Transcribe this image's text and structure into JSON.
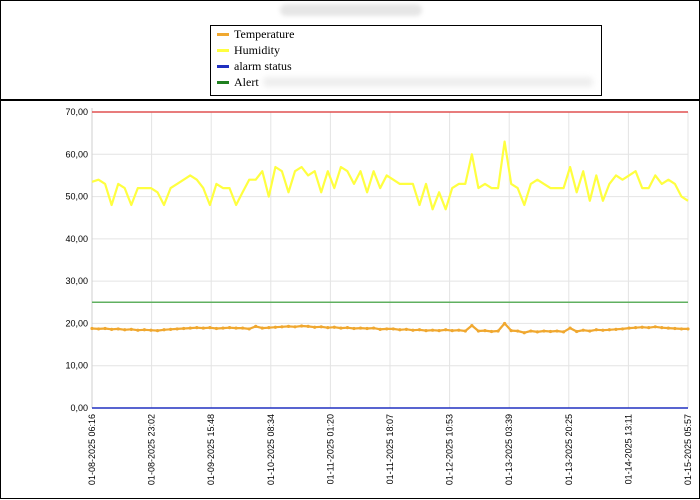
{
  "legend": {
    "items": [
      {
        "label": "Temperature",
        "color": "#f0a830"
      },
      {
        "label": "Humidity",
        "color": "#ffff40"
      },
      {
        "label": "alarm status",
        "color": "#2030c0"
      },
      {
        "label": "Alert",
        "color": "#208020"
      }
    ]
  },
  "chart_data": {
    "type": "line",
    "ylim": [
      0,
      70
    ],
    "y_ticks": [
      "0,00",
      "10,00",
      "20,00",
      "30,00",
      "40,00",
      "50,00",
      "60,00",
      "70,00"
    ],
    "x_ticks": [
      "01-08-2025 06:16",
      "01-08-2025 23:02",
      "01-09-2025 15:48",
      "01-10-2025 08:34",
      "01-11-2025 01:20",
      "01-11-2025 18:07",
      "01-12-2025 10:53",
      "01-13-2025 03:39",
      "01-13-2025 20:25",
      "01-14-2025 13:11",
      "01-15-2025 05:57"
    ],
    "grid": true,
    "thresholds": [
      {
        "value": 70,
        "color": "#e05050"
      },
      {
        "value": 25,
        "color": "#60b060"
      }
    ],
    "series": [
      {
        "name": "Humidity",
        "color": "#ffff40",
        "values": [
          53.5,
          54,
          53,
          48,
          53,
          52,
          48,
          52,
          52,
          52,
          51,
          48,
          52,
          53,
          54,
          55,
          54,
          52,
          48,
          53,
          52,
          52,
          48,
          51,
          54,
          54,
          56,
          50,
          57,
          56,
          51,
          56,
          57,
          55,
          56,
          51,
          56,
          52,
          57,
          56,
          53,
          56,
          51,
          56,
          52,
          55,
          54,
          53,
          53,
          53,
          48,
          53,
          47,
          51,
          47,
          52,
          53,
          53,
          60,
          52,
          53,
          52,
          52,
          63,
          53,
          52,
          48,
          53,
          54,
          53,
          52,
          52,
          52,
          57,
          51,
          56,
          49,
          55,
          49,
          53,
          55,
          54,
          55,
          56,
          52,
          52,
          55,
          53,
          54,
          53,
          50,
          49
        ],
        "spikes_up": [
          [
            58,
            60.5
          ],
          [
            63,
            63.5
          ]
        ]
      },
      {
        "name": "Temperature",
        "color": "#f0a830",
        "values": [
          18.8,
          18.7,
          18.8,
          18.6,
          18.7,
          18.5,
          18.6,
          18.4,
          18.5,
          18.4,
          18.3,
          18.5,
          18.6,
          18.7,
          18.8,
          18.9,
          19.0,
          18.9,
          19.0,
          18.8,
          18.9,
          19.0,
          18.9,
          18.9,
          18.7,
          19.3,
          18.9,
          19.0,
          19.1,
          19.2,
          19.3,
          19.2,
          19.4,
          19.3,
          19.1,
          19.2,
          19.0,
          19.1,
          18.9,
          19.0,
          18.8,
          18.9,
          18.8,
          18.9,
          18.6,
          18.7,
          18.7,
          18.5,
          18.6,
          18.4,
          18.5,
          18.3,
          18.4,
          18.3,
          18.5,
          18.3,
          18.4,
          18.2,
          19.5,
          18.2,
          18.3,
          18.1,
          18.2,
          20.0,
          18.3,
          18.2,
          17.8,
          18.2,
          18.0,
          18.2,
          18.1,
          18.2,
          18.0,
          18.9,
          18.1,
          18.4,
          18.2,
          18.5,
          18.4,
          18.5,
          18.6,
          18.7,
          18.9,
          19.0,
          19.1,
          19.0,
          19.2,
          19.0,
          18.9,
          18.8,
          18.7,
          18.7
        ]
      },
      {
        "name": "alarm status",
        "color": "#2030c0",
        "values": [
          0,
          0
        ]
      }
    ]
  }
}
